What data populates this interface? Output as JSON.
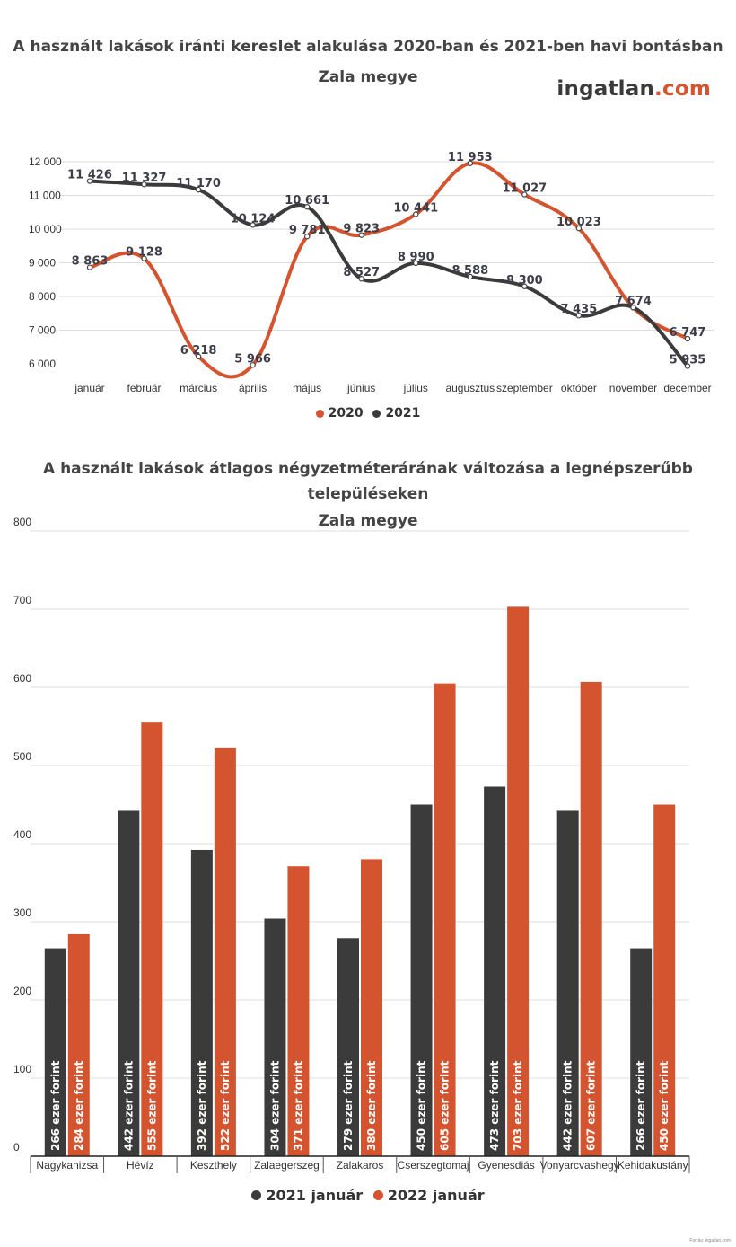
{
  "logo": {
    "main": "ingatlan",
    "suffix": ".com"
  },
  "colors": {
    "orange": "#d4542f",
    "dark": "#3b3b3b",
    "grid": "#dddddd"
  },
  "chart_data": [
    {
      "type": "line",
      "title_line1": "A használt lakások iránti kereslet alakulása 2020-ban és 2021-ben havi bontásban",
      "title_line2": "Zala megye",
      "categories": [
        "január",
        "február",
        "március",
        "április",
        "május",
        "június",
        "július",
        "augusztus",
        "szeptember",
        "október",
        "november",
        "december"
      ],
      "ylim": [
        6000,
        12000
      ],
      "yticks": [
        6000,
        7000,
        8000,
        9000,
        10000,
        11000,
        12000
      ],
      "ytick_labels": [
        "6 000",
        "7 000",
        "8 000",
        "9 000",
        "10 000",
        "11 000",
        "12 000"
      ],
      "grid": true,
      "legend_position": "bottom",
      "series": [
        {
          "name": "2020",
          "color": "#d4542f",
          "values": [
            8863,
            9128,
            6218,
            5966,
            9781,
            9823,
            10441,
            11953,
            11027,
            10023,
            7674,
            6747
          ],
          "labels": [
            "8 863",
            "9 128",
            "6 218",
            "5 966",
            "9 781",
            "9 823",
            "10 441",
            "11 953",
            "11 027",
            "10 023",
            "7 674",
            "6 747"
          ]
        },
        {
          "name": "2021",
          "color": "#3b3b3b",
          "values": [
            11426,
            11327,
            11170,
            10124,
            10661,
            8527,
            8990,
            8588,
            8300,
            7435,
            7674,
            5935
          ],
          "labels": [
            "11 426",
            "11 327",
            "11 170",
            "10 124",
            "10 661",
            "8 527",
            "8 990",
            "8 588",
            "8 300",
            "7 435",
            "",
            "5 935"
          ]
        }
      ]
    },
    {
      "type": "bar",
      "title_line1": "A használt lakások átlagos négyzetméterárának változása a legnépszerűbb településeken",
      "title_line2": "Zala megye",
      "categories": [
        "Nagykanizsa",
        "Hévíz",
        "Keszthely",
        "Zalaegerszeg",
        "Zalakaros",
        "Cserszegtomaj",
        "Gyenesdiás",
        "Vonyarcvashegy",
        "Kehidakustány"
      ],
      "ylim": [
        0,
        800
      ],
      "yticks": [
        0,
        100,
        200,
        300,
        400,
        500,
        600,
        700,
        800
      ],
      "ytick_labels": [
        "0",
        "100",
        "200",
        "300",
        "400",
        "500",
        "600",
        "700",
        "800"
      ],
      "grid": true,
      "legend_position": "bottom",
      "series": [
        {
          "name": "2021 január",
          "color": "#3b3b3b",
          "values": [
            266,
            442,
            392,
            304,
            279,
            450,
            473,
            442,
            266
          ],
          "labels": [
            "266 ezer forint",
            "442 ezer forint",
            "392 ezer forint",
            "304 ezer forint",
            "279 ezer forint",
            "450 ezer forint",
            "473 ezer forint",
            "442 ezer forint",
            "266 ezer forint"
          ]
        },
        {
          "name": "2022 január",
          "color": "#d4542f",
          "values": [
            284,
            555,
            522,
            371,
            380,
            605,
            703,
            607,
            450
          ],
          "labels": [
            "284 ezer forint",
            "555 ezer forint",
            "522 ezer forint",
            "371 ezer forint",
            "380 ezer forint",
            "605 ezer forint",
            "703 ezer forint",
            "607 ezer forint",
            "450 ezer forint"
          ]
        }
      ]
    }
  ],
  "source_note": "Forrás: ingatlan.com"
}
